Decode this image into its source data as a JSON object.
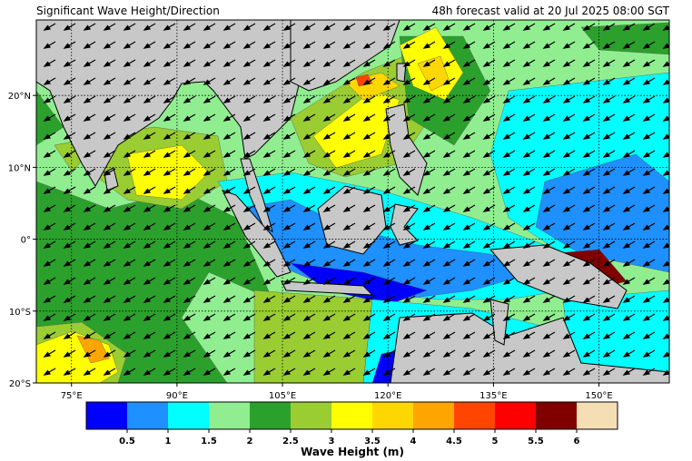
{
  "header": {
    "title": "Significant Wave Height/Direction",
    "subtitle": "48h forecast valid at 20 Jul 2025 08:00 SGT"
  },
  "map": {
    "xlim": [
      70,
      160
    ],
    "ylim": [
      -20,
      30.5
    ],
    "xticks": [
      {
        "value": 75,
        "label": "75°E"
      },
      {
        "value": 90,
        "label": "90°E"
      },
      {
        "value": 105,
        "label": "105°E"
      },
      {
        "value": 120,
        "label": "120°E"
      },
      {
        "value": 135,
        "label": "135°E"
      },
      {
        "value": 150,
        "label": "150°E"
      }
    ],
    "yticks": [
      {
        "value": 20,
        "label": "20°N"
      },
      {
        "value": 10,
        "label": "10°N"
      },
      {
        "value": 0,
        "label": "0°"
      },
      {
        "value": -10,
        "label": "10°S"
      },
      {
        "value": -20,
        "label": "20°S"
      }
    ],
    "grid": true
  },
  "colorbar": {
    "label": "Wave Height (m)",
    "vlim": [
      0,
      6.5
    ],
    "colors": [
      "#0000ff",
      "#1e90ff",
      "#00ffff",
      "#90ee90",
      "#2ca02c",
      "#9acd32",
      "#ffff00",
      "#ffd700",
      "#ffa500",
      "#ff4500",
      "#ff0000",
      "#800000",
      "#f5deb3"
    ],
    "ticks": [
      0.5,
      1,
      1.5,
      2,
      2.5,
      3,
      3.5,
      4,
      4.5,
      5,
      5.5,
      6
    ]
  }
}
